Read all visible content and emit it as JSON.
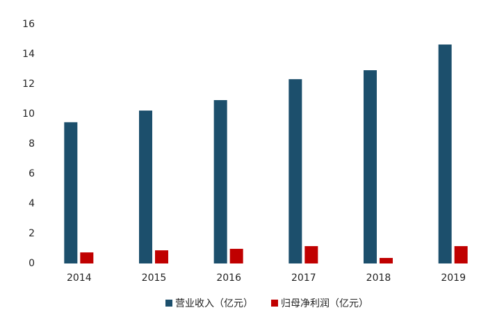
{
  "chart_data": {
    "type": "bar",
    "categories": [
      "2014",
      "2015",
      "2016",
      "2017",
      "2018",
      "2019"
    ],
    "series": [
      {
        "name": "营业收入（亿元）",
        "color": "#1c4f6c",
        "values": [
          9.45,
          10.23,
          10.93,
          12.33,
          12.93,
          14.65
        ]
      },
      {
        "name": "归母净利润（亿元）",
        "color": "#c00000",
        "values": [
          0.74,
          0.88,
          0.98,
          1.16,
          0.37,
          1.16
        ]
      }
    ],
    "ylim": [
      0,
      16
    ],
    "yticks": [
      0,
      2,
      4,
      6,
      8,
      10,
      12,
      14,
      16
    ],
    "grid": false,
    "legend": "bottom"
  }
}
